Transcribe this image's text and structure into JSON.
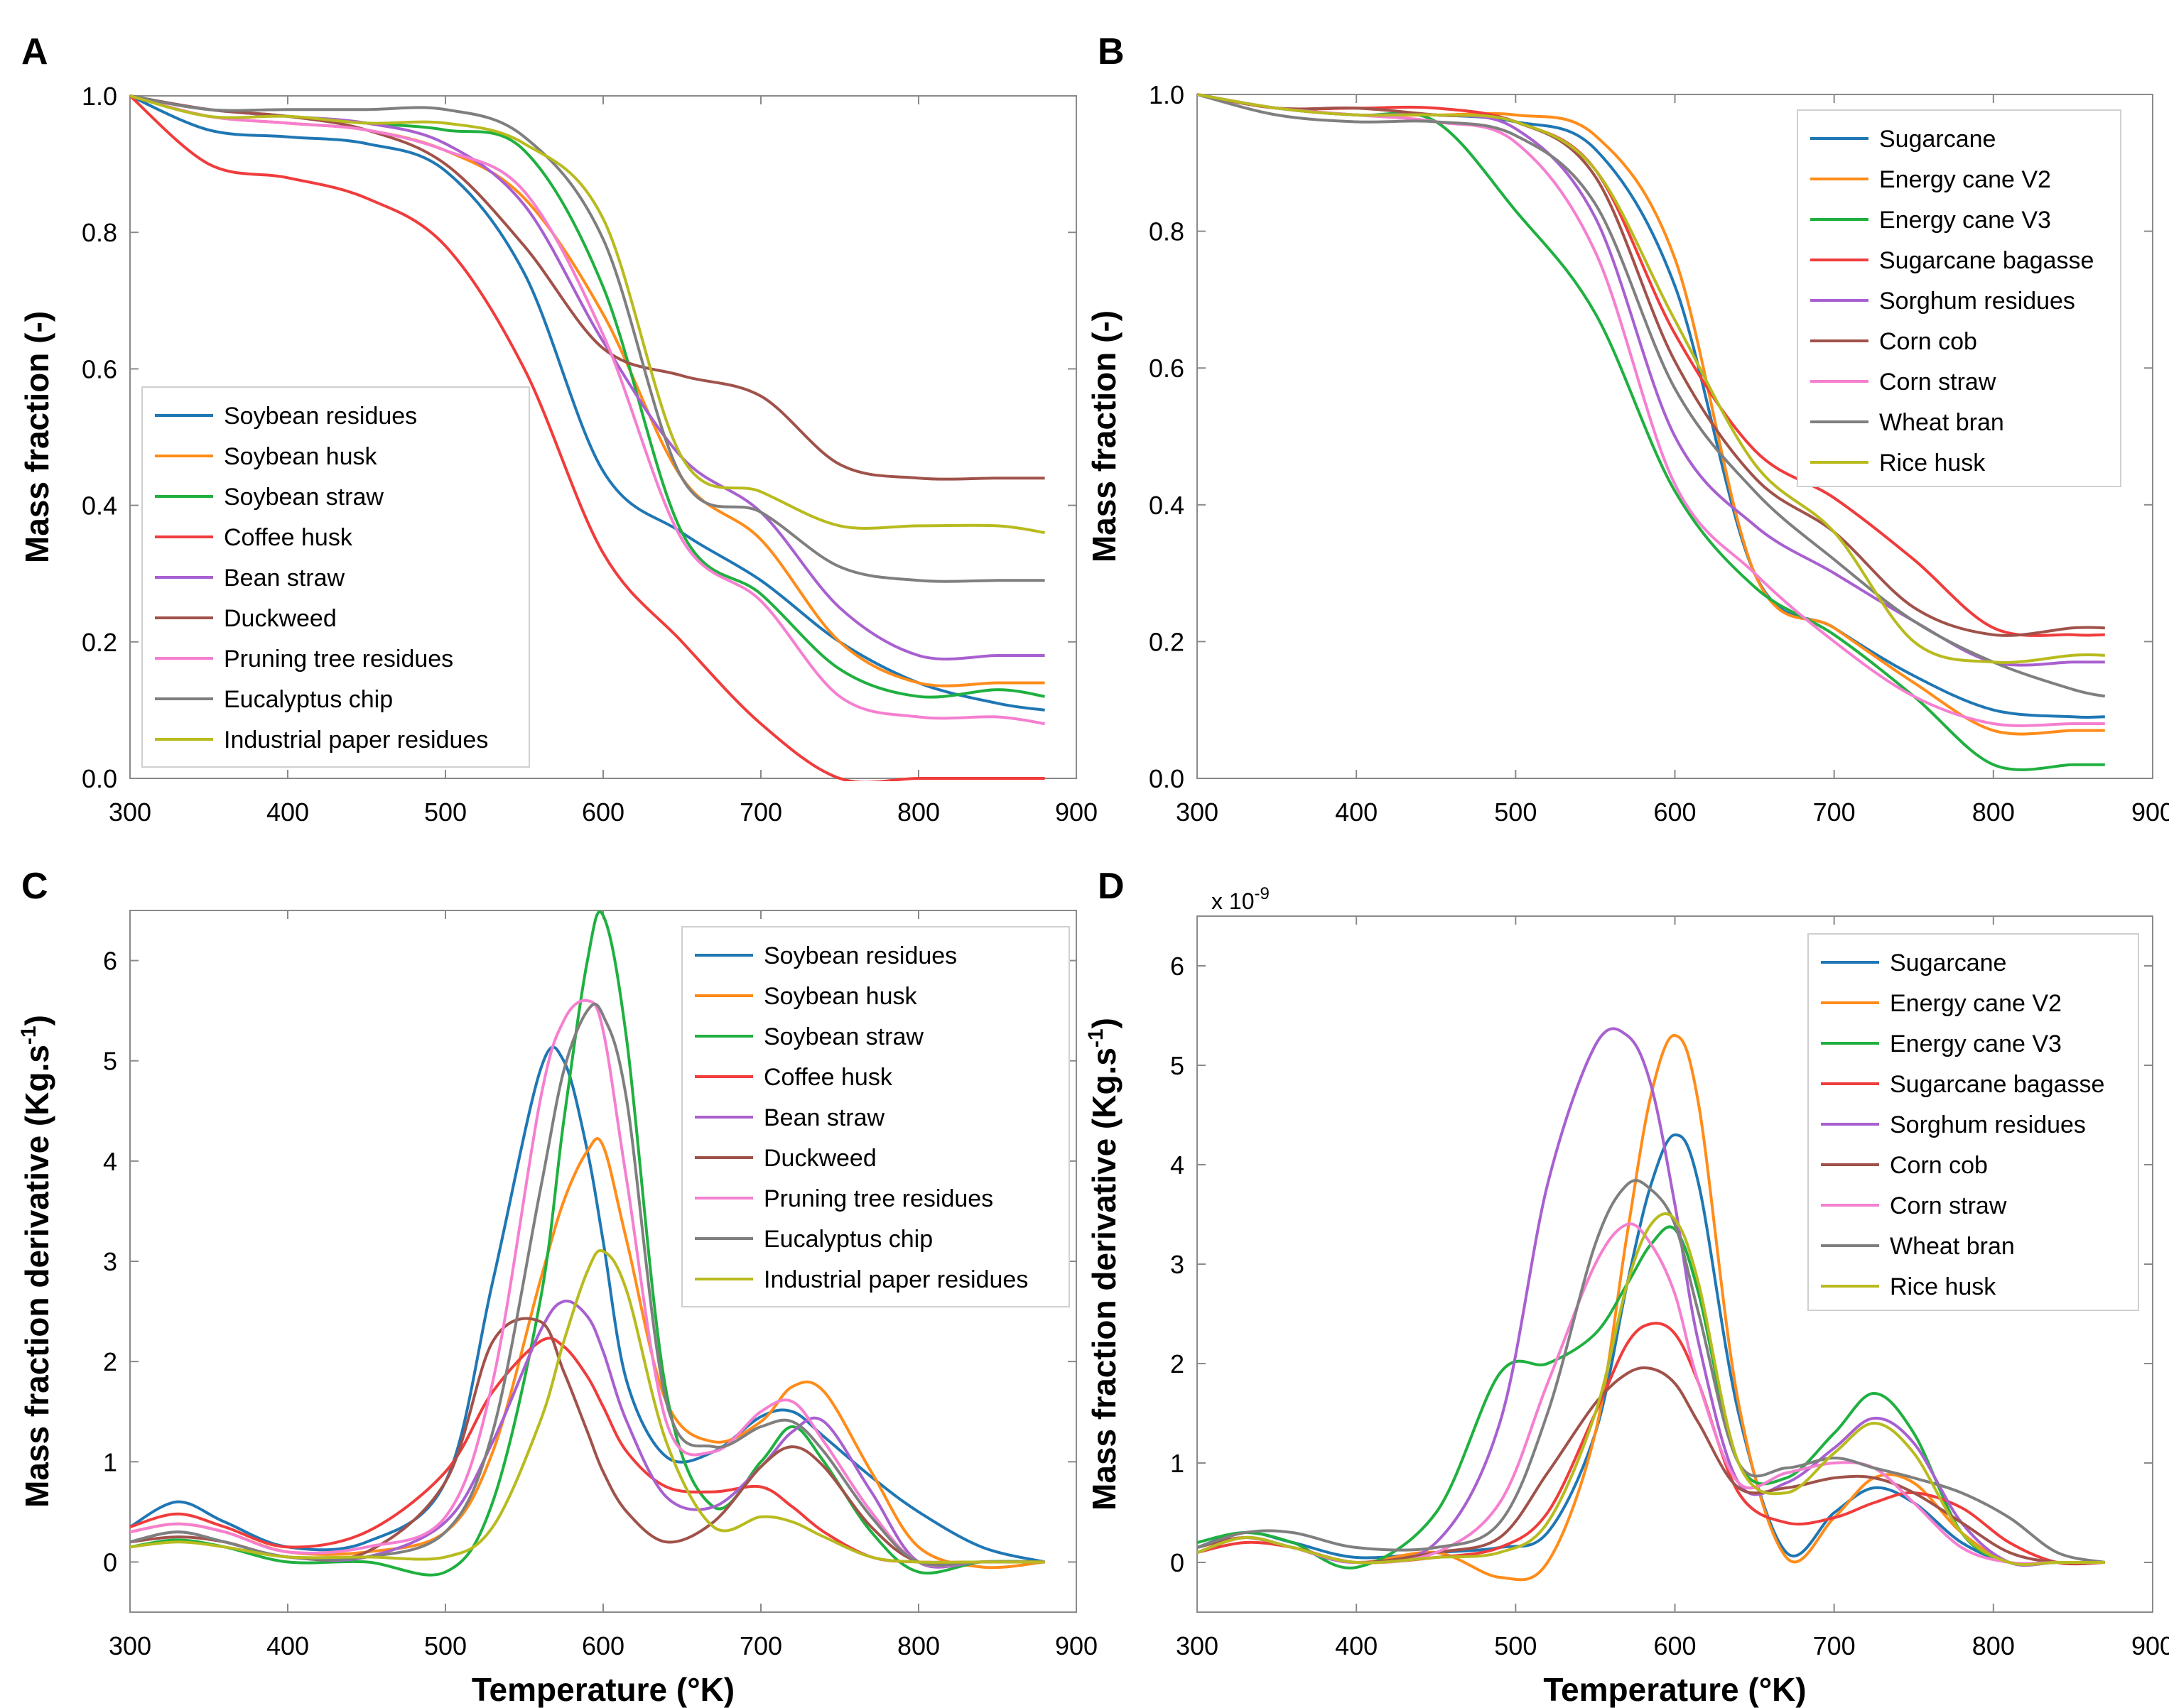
{
  "colors": {
    "blue": "#1f77b4",
    "orange": "#ff8c1a",
    "green": "#1fb040",
    "red": "#f03c3c",
    "purple": "#a860d0",
    "brown": "#a0524a",
    "pink": "#f57fd0",
    "gray": "#7f7f7f",
    "olive": "#b8bb1e"
  },
  "chart_data": [
    {
      "panel_label": "A",
      "type": "line",
      "title": "",
      "xlabel": "",
      "ylabel": "Mass fraction (-)",
      "xlim": [
        300,
        900
      ],
      "ylim": [
        0,
        1.0
      ],
      "xticks": [
        "300",
        "400",
        "500",
        "600",
        "700",
        "800",
        "900"
      ],
      "yticks": [
        "0.0",
        "0.2",
        "0.4",
        "0.6",
        "0.8",
        "1.0"
      ],
      "legend_position": "bottom-left",
      "x": [
        300,
        350,
        400,
        450,
        500,
        550,
        600,
        650,
        700,
        750,
        800,
        850,
        880
      ],
      "series": [
        {
          "name": "Soybean residues",
          "color_key": "blue",
          "values": [
            1.0,
            0.95,
            0.94,
            0.93,
            0.89,
            0.74,
            0.45,
            0.36,
            0.29,
            0.2,
            0.14,
            0.11,
            0.1
          ]
        },
        {
          "name": "Soybean husk",
          "color_key": "orange",
          "values": [
            1.0,
            0.97,
            0.96,
            0.95,
            0.92,
            0.85,
            0.68,
            0.44,
            0.35,
            0.2,
            0.14,
            0.14,
            0.14
          ]
        },
        {
          "name": "Soybean straw",
          "color_key": "green",
          "values": [
            1.0,
            0.98,
            0.97,
            0.96,
            0.95,
            0.92,
            0.72,
            0.36,
            0.27,
            0.16,
            0.12,
            0.13,
            0.12
          ]
        },
        {
          "name": "Coffee husk",
          "color_key": "red",
          "values": [
            1.0,
            0.9,
            0.88,
            0.85,
            0.78,
            0.6,
            0.33,
            0.2,
            0.08,
            0.0,
            0.0,
            0.0,
            0.0
          ]
        },
        {
          "name": "Bean straw",
          "color_key": "purple",
          "values": [
            1.0,
            0.98,
            0.97,
            0.96,
            0.93,
            0.84,
            0.64,
            0.47,
            0.39,
            0.25,
            0.18,
            0.18,
            0.18
          ]
        },
        {
          "name": "Duckweed",
          "color_key": "brown",
          "values": [
            1.0,
            0.98,
            0.97,
            0.95,
            0.9,
            0.78,
            0.63,
            0.59,
            0.56,
            0.46,
            0.44,
            0.44,
            0.44
          ]
        },
        {
          "name": "Pruning tree residues",
          "color_key": "pink",
          "values": [
            1.0,
            0.97,
            0.96,
            0.95,
            0.92,
            0.86,
            0.65,
            0.35,
            0.26,
            0.12,
            0.09,
            0.09,
            0.08
          ]
        },
        {
          "name": "Eucalyptus chip",
          "color_key": "gray",
          "values": [
            1.0,
            0.98,
            0.98,
            0.98,
            0.98,
            0.94,
            0.79,
            0.44,
            0.39,
            0.31,
            0.29,
            0.29,
            0.29
          ]
        },
        {
          "name": "Industrial paper residues",
          "color_key": "olive",
          "values": [
            1.0,
            0.97,
            0.97,
            0.96,
            0.96,
            0.93,
            0.82,
            0.47,
            0.42,
            0.37,
            0.37,
            0.37,
            0.36
          ]
        }
      ]
    },
    {
      "panel_label": "B",
      "type": "line",
      "title": "",
      "xlabel": "",
      "ylabel": "Mass fraction (-)",
      "xlim": [
        300,
        900
      ],
      "ylim": [
        0,
        1.0
      ],
      "xticks": [
        "300",
        "400",
        "500",
        "600",
        "700",
        "800",
        "900"
      ],
      "yticks": [
        "0.0",
        "0.2",
        "0.4",
        "0.6",
        "0.8",
        "1.0"
      ],
      "legend_position": "top-right",
      "x": [
        300,
        350,
        400,
        450,
        500,
        550,
        600,
        650,
        700,
        750,
        800,
        850,
        870
      ],
      "series": [
        {
          "name": "Sugarcane",
          "color_key": "blue",
          "values": [
            1.0,
            0.98,
            0.97,
            0.97,
            0.96,
            0.92,
            0.72,
            0.3,
            0.22,
            0.15,
            0.1,
            0.09,
            0.09
          ]
        },
        {
          "name": "Energy cane V2",
          "color_key": "orange",
          "values": [
            1.0,
            0.98,
            0.97,
            0.97,
            0.97,
            0.94,
            0.76,
            0.3,
            0.22,
            0.14,
            0.07,
            0.07,
            0.07
          ]
        },
        {
          "name": "Energy cane V3",
          "color_key": "green",
          "values": [
            1.0,
            0.98,
            0.97,
            0.96,
            0.83,
            0.68,
            0.42,
            0.28,
            0.21,
            0.12,
            0.02,
            0.02,
            0.02
          ]
        },
        {
          "name": "Sugarcane bagasse",
          "color_key": "red",
          "values": [
            1.0,
            0.98,
            0.98,
            0.98,
            0.96,
            0.89,
            0.65,
            0.48,
            0.41,
            0.32,
            0.22,
            0.21,
            0.21
          ]
        },
        {
          "name": "Sorghum residues",
          "color_key": "purple",
          "values": [
            1.0,
            0.98,
            0.97,
            0.97,
            0.95,
            0.82,
            0.5,
            0.37,
            0.3,
            0.23,
            0.17,
            0.17,
            0.17
          ]
        },
        {
          "name": "Corn cob",
          "color_key": "brown",
          "values": [
            1.0,
            0.98,
            0.98,
            0.97,
            0.96,
            0.88,
            0.61,
            0.44,
            0.36,
            0.25,
            0.21,
            0.22,
            0.22
          ]
        },
        {
          "name": "Corn straw",
          "color_key": "pink",
          "values": [
            1.0,
            0.98,
            0.97,
            0.96,
            0.93,
            0.77,
            0.43,
            0.3,
            0.2,
            0.12,
            0.08,
            0.08,
            0.08
          ]
        },
        {
          "name": "Wheat bran",
          "color_key": "gray",
          "values": [
            1.0,
            0.97,
            0.96,
            0.96,
            0.94,
            0.84,
            0.57,
            0.42,
            0.32,
            0.23,
            0.17,
            0.13,
            0.12
          ]
        },
        {
          "name": "Rice husk",
          "color_key": "olive",
          "values": [
            1.0,
            0.98,
            0.97,
            0.97,
            0.96,
            0.89,
            0.67,
            0.46,
            0.36,
            0.2,
            0.17,
            0.18,
            0.18
          ]
        }
      ]
    },
    {
      "panel_label": "C",
      "type": "line",
      "title": "",
      "xlabel": "Temperature (°K)",
      "ylabel": "Mass fraction derivative (Kg.s",
      "ylabel_sup": "-1",
      "ylabel_end": ")",
      "xlim": [
        300,
        900
      ],
      "ylim": [
        -0.5,
        6.5
      ],
      "xticks": [
        "300",
        "400",
        "500",
        "600",
        "700",
        "800",
        "900"
      ],
      "yticks": [
        "0",
        "1",
        "2",
        "3",
        "4",
        "5",
        "6"
      ],
      "legend_position": "top-right",
      "x": [
        300,
        330,
        360,
        400,
        450,
        500,
        530,
        560,
        575,
        590,
        600,
        615,
        640,
        670,
        700,
        720,
        740,
        770,
        800,
        840,
        880
      ],
      "series": [
        {
          "name": "Soybean residues",
          "color_key": "blue",
          "values": [
            0.35,
            0.6,
            0.4,
            0.15,
            0.2,
            0.8,
            2.8,
            4.9,
            5.0,
            4.1,
            3.2,
            1.8,
            1.05,
            1.1,
            1.45,
            1.5,
            1.25,
            0.85,
            0.5,
            0.15,
            0.0
          ]
        },
        {
          "name": "Soybean husk",
          "color_key": "orange",
          "values": [
            0.3,
            0.38,
            0.3,
            0.1,
            0.1,
            0.3,
            1.1,
            2.8,
            3.6,
            4.1,
            4.15,
            3.2,
            1.6,
            1.2,
            1.4,
            1.75,
            1.7,
            0.9,
            0.15,
            -0.05,
            0.0
          ]
        },
        {
          "name": "Soybean straw",
          "color_key": "green",
          "values": [
            0.15,
            0.22,
            0.15,
            0.0,
            0.0,
            -0.1,
            0.6,
            2.6,
            4.4,
            6.0,
            6.45,
            5.2,
            1.7,
            0.55,
            1.0,
            1.35,
            1.0,
            0.3,
            -0.1,
            0.0,
            0.0
          ]
        },
        {
          "name": "Coffee husk",
          "color_key": "red",
          "values": [
            0.35,
            0.48,
            0.35,
            0.15,
            0.3,
            0.9,
            1.7,
            2.2,
            2.15,
            1.85,
            1.55,
            1.1,
            0.75,
            0.7,
            0.75,
            0.55,
            0.3,
            0.05,
            0.0,
            0.0,
            0.0
          ]
        },
        {
          "name": "Bean straw",
          "color_key": "purple",
          "values": [
            0.2,
            0.3,
            0.2,
            0.05,
            0.05,
            0.4,
            1.2,
            2.3,
            2.6,
            2.45,
            2.1,
            1.4,
            0.65,
            0.55,
            0.95,
            1.3,
            1.4,
            0.7,
            0.0,
            0.0,
            0.0
          ]
        },
        {
          "name": "Duckweed",
          "color_key": "brown",
          "values": [
            0.2,
            0.25,
            0.2,
            0.05,
            0.1,
            0.8,
            2.2,
            2.4,
            1.9,
            1.3,
            0.9,
            0.5,
            0.2,
            0.4,
            0.95,
            1.15,
            0.95,
            0.35,
            0.0,
            0.0,
            0.0
          ]
        },
        {
          "name": "Pruning tree residues",
          "color_key": "pink",
          "values": [
            0.3,
            0.38,
            0.3,
            0.1,
            0.15,
            0.45,
            1.8,
            4.6,
            5.4,
            5.6,
            5.3,
            3.8,
            1.4,
            1.1,
            1.5,
            1.6,
            1.2,
            0.5,
            0.0,
            0.0,
            0.0
          ]
        },
        {
          "name": "Eucalyptus chip",
          "color_key": "gray",
          "values": [
            0.2,
            0.3,
            0.2,
            0.05,
            0.05,
            0.3,
            1.3,
            3.7,
            4.9,
            5.5,
            5.45,
            4.6,
            1.6,
            1.15,
            1.35,
            1.4,
            1.1,
            0.45,
            0.0,
            0.0,
            0.0
          ]
        },
        {
          "name": "Industrial paper residues",
          "color_key": "olive",
          "values": [
            0.15,
            0.2,
            0.15,
            0.05,
            0.05,
            0.05,
            0.35,
            1.4,
            2.2,
            2.9,
            3.1,
            2.7,
            1.2,
            0.35,
            0.45,
            0.4,
            0.25,
            0.05,
            0.0,
            0.0,
            0.0
          ]
        }
      ]
    },
    {
      "panel_label": "D",
      "type": "line",
      "title": "",
      "xlabel": "Temperature (°K)",
      "ylabel": "Mass fraction derivative (Kg.s",
      "ylabel_sup": "-1",
      "ylabel_end": ")",
      "y_scale_label": "x 10",
      "y_scale_exp": "-9",
      "xlim": [
        300,
        900
      ],
      "ylim": [
        -0.5,
        6.5
      ],
      "xticks": [
        "300",
        "400",
        "500",
        "600",
        "700",
        "800",
        "900"
      ],
      "yticks": [
        "0",
        "1",
        "2",
        "3",
        "4",
        "5",
        "6"
      ],
      "legend_position": "top-right",
      "x": [
        300,
        330,
        360,
        400,
        450,
        490,
        520,
        550,
        570,
        585,
        600,
        615,
        640,
        670,
        700,
        725,
        750,
        780,
        810,
        840,
        870
      ],
      "series": [
        {
          "name": "Sugarcane",
          "color_key": "blue",
          "values": [
            0.15,
            0.3,
            0.2,
            0.05,
            0.1,
            0.15,
            0.3,
            1.3,
            2.8,
            3.8,
            4.3,
            3.8,
            1.5,
            0.1,
            0.5,
            0.75,
            0.6,
            0.2,
            0.0,
            0.0,
            0.0
          ]
        },
        {
          "name": "Energy cane V2",
          "color_key": "orange",
          "values": [
            0.1,
            0.25,
            0.15,
            0.0,
            0.1,
            -0.15,
            0.0,
            1.3,
            3.3,
            4.7,
            5.3,
            4.6,
            1.6,
            0.05,
            0.45,
            0.85,
            0.8,
            0.3,
            0.0,
            0.0,
            0.0
          ]
        },
        {
          "name": "Energy cane V3",
          "color_key": "green",
          "values": [
            0.2,
            0.3,
            0.2,
            -0.05,
            0.5,
            1.9,
            2.0,
            2.3,
            2.8,
            3.2,
            3.35,
            2.7,
            1.0,
            0.85,
            1.3,
            1.7,
            1.3,
            0.3,
            0.0,
            0.0,
            0.0
          ]
        },
        {
          "name": "Sugarcane bagasse",
          "color_key": "red",
          "values": [
            0.1,
            0.2,
            0.15,
            0.0,
            0.05,
            0.15,
            0.5,
            1.5,
            2.2,
            2.4,
            2.3,
            1.8,
            0.7,
            0.4,
            0.45,
            0.6,
            0.7,
            0.55,
            0.2,
            0.0,
            0.0
          ]
        },
        {
          "name": "Sorghum residues",
          "color_key": "purple",
          "values": [
            0.1,
            0.25,
            0.15,
            0.0,
            0.2,
            1.4,
            3.8,
            5.2,
            5.3,
            4.8,
            3.6,
            2.2,
            0.8,
            0.8,
            1.15,
            1.45,
            1.2,
            0.4,
            0.0,
            0.0,
            0.0
          ]
        },
        {
          "name": "Corn cob",
          "color_key": "brown",
          "values": [
            0.15,
            0.25,
            0.15,
            0.0,
            0.1,
            0.25,
            0.9,
            1.6,
            1.9,
            1.95,
            1.8,
            1.4,
            0.75,
            0.75,
            0.85,
            0.85,
            0.7,
            0.4,
            0.1,
            0.0,
            0.0
          ]
        },
        {
          "name": "Corn straw",
          "color_key": "pink",
          "values": [
            0.1,
            0.25,
            0.15,
            0.0,
            0.1,
            0.6,
            1.8,
            3.0,
            3.4,
            3.2,
            2.7,
            1.8,
            0.8,
            0.9,
            1.0,
            0.95,
            0.6,
            0.15,
            0.0,
            0.0,
            0.0
          ]
        },
        {
          "name": "Wheat bran",
          "color_key": "gray",
          "values": [
            0.15,
            0.3,
            0.3,
            0.15,
            0.15,
            0.4,
            1.5,
            3.2,
            3.8,
            3.75,
            3.4,
            2.5,
            1.0,
            0.95,
            1.05,
            0.95,
            0.85,
            0.7,
            0.45,
            0.1,
            0.0
          ]
        },
        {
          "name": "Rice husk",
          "color_key": "olive",
          "values": [
            0.1,
            0.25,
            0.15,
            0.0,
            0.05,
            0.1,
            0.4,
            1.5,
            2.8,
            3.4,
            3.45,
            2.8,
            1.0,
            0.7,
            1.1,
            1.4,
            1.1,
            0.3,
            0.0,
            0.0,
            0.0
          ]
        }
      ]
    }
  ]
}
